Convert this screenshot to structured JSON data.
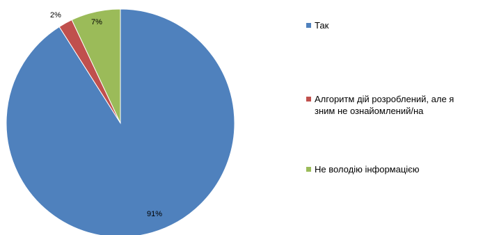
{
  "chart_data": {
    "type": "pie",
    "slices": [
      {
        "label": "Так",
        "value": 91,
        "data_label": "91%",
        "color": "#4F81BD"
      },
      {
        "label": "Алгоритм дій розроблений, але я зним не ознайомлений/на",
        "value": 2,
        "data_label": "2%",
        "color": "#C0504D"
      },
      {
        "label": "Не володію інформацією",
        "value": 7,
        "data_label": "7%",
        "color": "#9BBB59"
      }
    ],
    "legend": {
      "placement": "right",
      "items": [
        {
          "lines": [
            "Так"
          ],
          "color": "#4F81BD"
        },
        {
          "lines": [
            "Алгоритм дій розроблений, але я",
            "зним не ознайомлений/на"
          ],
          "color": "#C0504D"
        },
        {
          "lines": [
            "Не володію інформацією"
          ],
          "color": "#9BBB59"
        }
      ]
    }
  }
}
